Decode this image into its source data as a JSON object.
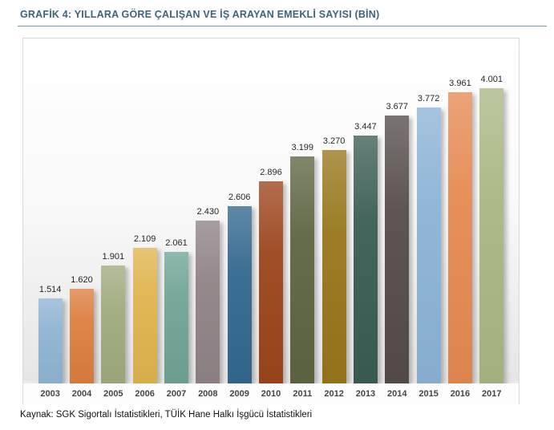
{
  "header": {
    "title": "GRAFİK 4: YILLARA GÖRE ÇALIŞAN VE İŞ ARAYAN EMEKLİ SAYISI (BİN)"
  },
  "footer": {
    "source": "Kaynak: SGK Sigortalı İstatistikleri, TÜİK Hane Halkı İşgücü İstatistikleri"
  },
  "chart_data": {
    "type": "bar",
    "title": "GRAFİK 4: YILLARA GÖRE ÇALIŞAN VE İŞ ARAYAN EMEKLİ SAYISI (BİN)",
    "subtitle": "",
    "xlabel": "",
    "ylabel": "",
    "unit_note": "BİN",
    "categories": [
      "2003",
      "2004",
      "2005",
      "2006",
      "2007",
      "2008",
      "2009",
      "2010",
      "2011",
      "2012",
      "2013",
      "2014",
      "2015",
      "2016",
      "2017"
    ],
    "values": [
      1514,
      1620,
      1901,
      2109,
      2061,
      2430,
      2606,
      2896,
      3199,
      3270,
      3447,
      3677,
      3772,
      3961,
      4001
    ],
    "value_labels": [
      "1.514",
      "1.620",
      "1.901",
      "2.109",
      "2.061",
      "2.430",
      "2.606",
      "2.896",
      "3.199",
      "3.270",
      "3.447",
      "3.677",
      "3.772",
      "3.961",
      "4.001"
    ],
    "bar_colors": [
      "#8FB4D3",
      "#DC7E3F",
      "#9FAB7E",
      "#E0B44E",
      "#6FA496",
      "#8F8386",
      "#33688F",
      "#9C451C",
      "#5D6542",
      "#97761B",
      "#3A5D53",
      "#564C4A",
      "#8CB3D6",
      "#E58A52",
      "#A9B784"
    ],
    "data_labels": "above bars",
    "value_axis_visible": false,
    "gridlines": false,
    "legend_position": "none",
    "source": "Kaynak: SGK Sigortalı İstatistikleri, TÜİK Hane Halkı İşgücü İstatistikleri",
    "accent_colors": {
      "title_text": "#3d6478",
      "title_rule": "#7d98a9",
      "panel_border": "#d9d9d9"
    }
  }
}
